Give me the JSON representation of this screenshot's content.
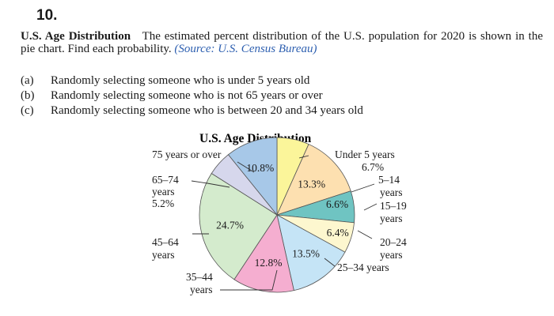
{
  "question_number": "10.",
  "problem": {
    "title": "U.S. Age Distribution",
    "text": "The estimated percent distribution of the U.S. population for 2020 is shown in the pie chart. Find each probability.",
    "source": "(Source: U.S. Census Bureau)"
  },
  "parts": [
    {
      "label": "(a)",
      "text": "Randomly selecting someone who is under 5 years old"
    },
    {
      "label": "(b)",
      "text": "Randomly selecting someone who is not 65 years or over"
    },
    {
      "label": "(c)",
      "text": "Randomly selecting someone who is between 20 and 34 years old"
    }
  ],
  "chart_data": {
    "type": "pie",
    "title": "U.S. Age Distribution",
    "slices": [
      {
        "category": "Under 5 years",
        "value": 6.7,
        "label": "6.7%",
        "color": "#fbf59a"
      },
      {
        "category": "5–14 years",
        "value": 13.3,
        "label": "13.3%",
        "color": "#fde0b0"
      },
      {
        "category": "15–19 years",
        "value": 6.6,
        "label": "6.6%",
        "color": "#6fc4c2"
      },
      {
        "category": "20–24 years",
        "value": 6.4,
        "label": "6.4%",
        "color": "#fdf7cf"
      },
      {
        "category": "25–34 years",
        "value": 13.5,
        "label": "13.5%",
        "color": "#c5e4f6"
      },
      {
        "category": "35–44 years",
        "value": 12.8,
        "label": "12.8%",
        "color": "#f5aed0"
      },
      {
        "category": "45–64 years",
        "value": 24.7,
        "label": "24.7%",
        "color": "#d4ebcd"
      },
      {
        "category": "65–74 years",
        "value": 5.2,
        "label": "5.2%",
        "color": "#d6d7ec"
      },
      {
        "category": "75 years or over",
        "value": 10.8,
        "label": "10.8%",
        "color": "#a7c8e8"
      }
    ],
    "outside_labels": {
      "under5": {
        "name": "Under 5 years",
        "pct": "6.7%"
      },
      "a5_14": {
        "l1": "5–14",
        "l2": "years"
      },
      "a15_19": {
        "l1": "15–19",
        "l2": "years"
      },
      "a20_24": {
        "l1": "20–24",
        "l2": "years"
      },
      "a25_34": {
        "name": "25–34 years"
      },
      "a35_44": {
        "l1": "35–44",
        "l2": "years"
      },
      "a45_64": {
        "l1": "45–64",
        "l2": "years"
      },
      "a65_74": {
        "l1": "65–74",
        "l2": "years",
        "pct": "5.2%"
      },
      "a75": {
        "name": "75 years or over"
      }
    }
  }
}
